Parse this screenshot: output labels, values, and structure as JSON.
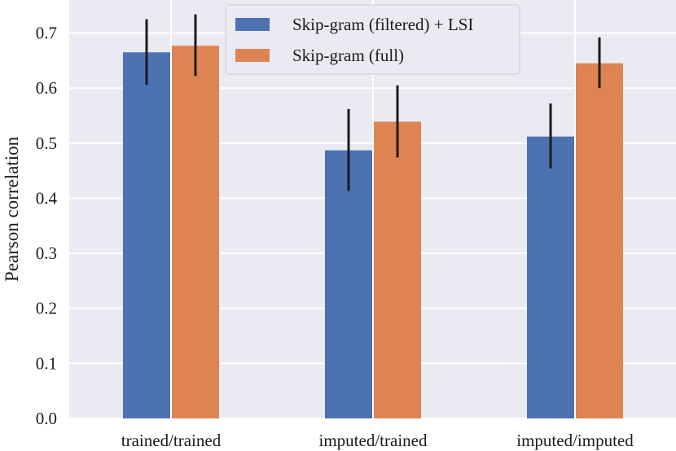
{
  "chart_data": {
    "type": "bar",
    "title": "",
    "xlabel": "",
    "ylabel": "Pearson correlation",
    "ylim": [
      0,
      0.76
    ],
    "yticks": [
      0.0,
      0.1,
      0.2,
      0.3,
      0.4,
      0.5,
      0.6,
      0.7
    ],
    "ytick_labels": [
      "0.0",
      "0.1",
      "0.2",
      "0.3",
      "0.4",
      "0.5",
      "0.6",
      "0.7"
    ],
    "grid": true,
    "legend_position": "top-center",
    "categories": [
      "trained/trained",
      "imputed/trained",
      "imputed/imputed"
    ],
    "series": [
      {
        "name": "Skip-gram (filtered) + LSI",
        "color": "#4c72b0",
        "values": [
          0.665,
          0.487,
          0.512
        ],
        "err_low": [
          0.606,
          0.413,
          0.454
        ],
        "err_high": [
          0.725,
          0.562,
          0.572
        ]
      },
      {
        "name": "Skip-gram (full)",
        "color": "#dd8452",
        "values": [
          0.677,
          0.539,
          0.645
        ],
        "err_low": [
          0.622,
          0.474,
          0.6
        ],
        "err_high": [
          0.734,
          0.605,
          0.692
        ]
      }
    ],
    "background_color": "#eaeaf2",
    "grid_color": "#ffffff",
    "errorbar_color": "#1a1a1a"
  }
}
